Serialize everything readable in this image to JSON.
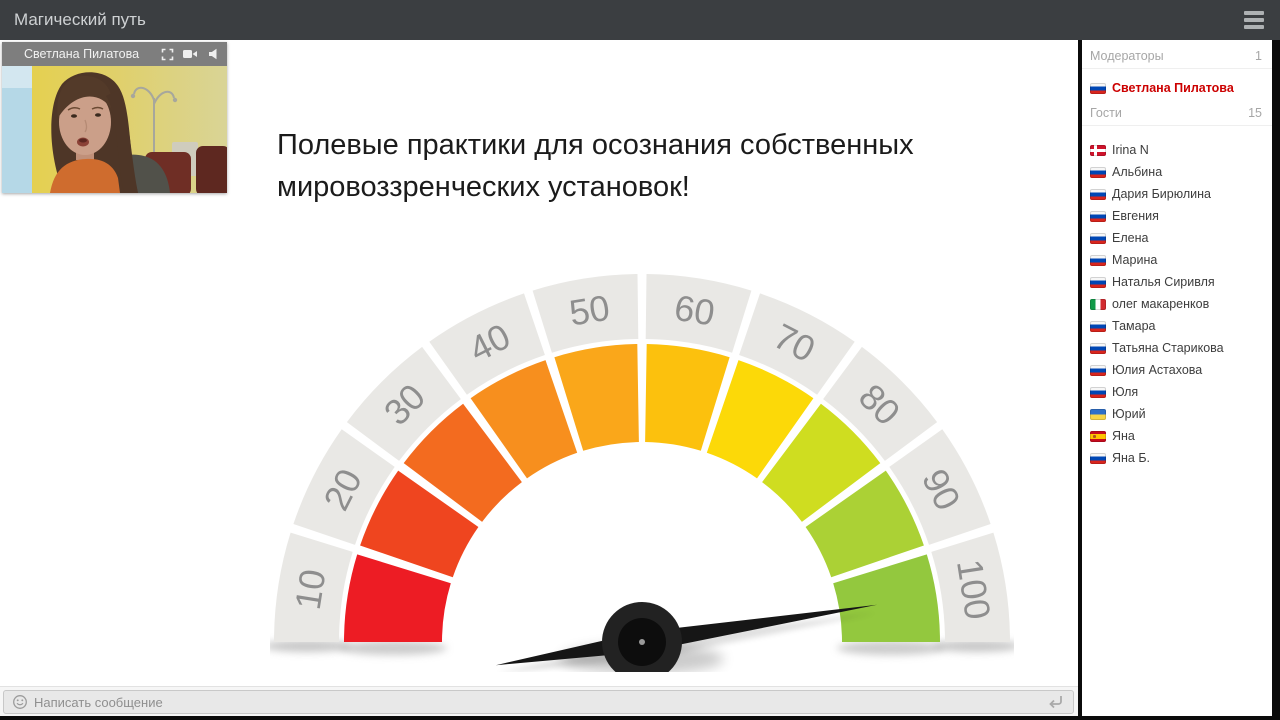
{
  "window": {
    "title": "Магический путь"
  },
  "top_bar": {
    "menu_icon": "hamburger-icon"
  },
  "webcam": {
    "name_label": "Светлана Пилатова",
    "controls": [
      "fullscreen-icon",
      "camera-icon",
      "speaker-icon"
    ]
  },
  "slide": {
    "title": "Полевые практики для осознания собственных мировоззренческих установок!"
  },
  "chart_data": {
    "type": "gauge",
    "min": 0,
    "max": 100,
    "tick_labels": [
      "10",
      "20",
      "30",
      "40",
      "50",
      "60",
      "70",
      "80",
      "90",
      "100"
    ],
    "segment_colors": [
      "#ed1c24",
      "#ef451f",
      "#f36b1f",
      "#f78f1e",
      "#faa71a",
      "#fcc10d",
      "#fcd908",
      "#cfdd20",
      "#abd135",
      "#93c83e"
    ],
    "ring_color": "#e9e8e5",
    "tick_color": "#8e8e8e",
    "needle_color": "#161616",
    "needle_value": 95
  },
  "sidebar": {
    "moderators_header": {
      "label": "Модераторы",
      "count": "1"
    },
    "moderators": [
      {
        "name": "Светлана Пилатова",
        "flag": "ru"
      }
    ],
    "guests_header": {
      "label": "Гости",
      "count": "15"
    },
    "guests": [
      {
        "name": "Irina N",
        "flag": "dk"
      },
      {
        "name": "Альбина",
        "flag": "ru"
      },
      {
        "name": "Дария Бирюлина",
        "flag": "ru"
      },
      {
        "name": "Евгения",
        "flag": "ru"
      },
      {
        "name": "Елена",
        "flag": "ru"
      },
      {
        "name": "Марина",
        "flag": "ru"
      },
      {
        "name": "Наталья Сиривля",
        "flag": "ru"
      },
      {
        "name": "олег макаренков",
        "flag": "it"
      },
      {
        "name": "Тамара",
        "flag": "ru"
      },
      {
        "name": "Татьяна Старикова",
        "flag": "ru"
      },
      {
        "name": "Юлия Астахова",
        "flag": "ru"
      },
      {
        "name": "Юля",
        "flag": "ru"
      },
      {
        "name": "Юрий",
        "flag": "ua"
      },
      {
        "name": "Яна",
        "flag": "es"
      },
      {
        "name": "Яна Б.",
        "flag": "ru"
      }
    ]
  },
  "chat": {
    "placeholder": "Написать сообщение",
    "smiley_icon": "smiley-face",
    "enter_icon": "return-arrow"
  }
}
